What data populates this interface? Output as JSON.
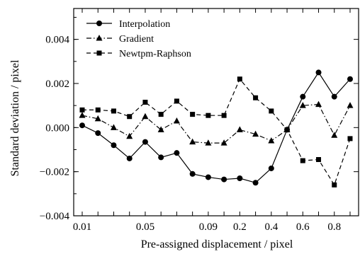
{
  "chart_data": {
    "type": "line",
    "title": "",
    "xlabel": "Pre-assigned displacement / pixel",
    "ylabel": "Standard deviation / pixel",
    "ylim": [
      -0.004,
      0.0054
    ],
    "xtick_labels": [
      "0.01",
      "0.05",
      "0.09",
      "0.2",
      "0.4",
      "0.6",
      "0.8"
    ],
    "ytick_labels": [
      "−0.004",
      "−0.002",
      "0.000",
      "0.002",
      "0.004"
    ],
    "ytick_values": [
      -0.004,
      -0.002,
      0.0,
      0.002,
      0.004
    ],
    "grid": false,
    "legend_position": "top-left",
    "x": [
      0.01,
      0.02,
      0.03,
      0.04,
      0.05,
      0.06,
      0.07,
      0.08,
      0.09,
      0.1,
      0.2,
      0.3,
      0.4,
      0.5,
      0.6,
      0.7,
      0.8,
      0.9
    ],
    "series": [
      {
        "name": "Interpolation",
        "marker": "circle",
        "dash": "solid",
        "values": [
          0.0001,
          -0.00025,
          -0.0008,
          -0.0014,
          -0.00065,
          -0.00135,
          -0.00115,
          -0.0021,
          -0.00225,
          -0.00235,
          -0.0023,
          -0.0025,
          -0.00185,
          -0.0001,
          0.0014,
          0.0025,
          0.0014,
          0.0022
        ]
      },
      {
        "name": "Gradient",
        "marker": "triangle",
        "dash": "dashdot",
        "values": [
          0.00055,
          0.0004,
          0.0,
          -0.0004,
          0.0005,
          -0.0001,
          0.0003,
          -0.00065,
          -0.0007,
          -0.0007,
          -0.0001,
          -0.0003,
          -0.0006,
          -0.0001,
          0.001,
          0.00105,
          -0.00035,
          0.001
        ]
      },
      {
        "name": "Newtpm-Raphson",
        "marker": "square",
        "dash": "dashed",
        "values": [
          0.0008,
          0.0008,
          0.00075,
          0.0005,
          0.00115,
          0.0006,
          0.0012,
          0.0006,
          0.00055,
          0.00055,
          0.0022,
          0.00135,
          0.00075,
          -0.0001,
          -0.0015,
          -0.00145,
          -0.0026,
          -0.0005
        ]
      }
    ]
  }
}
